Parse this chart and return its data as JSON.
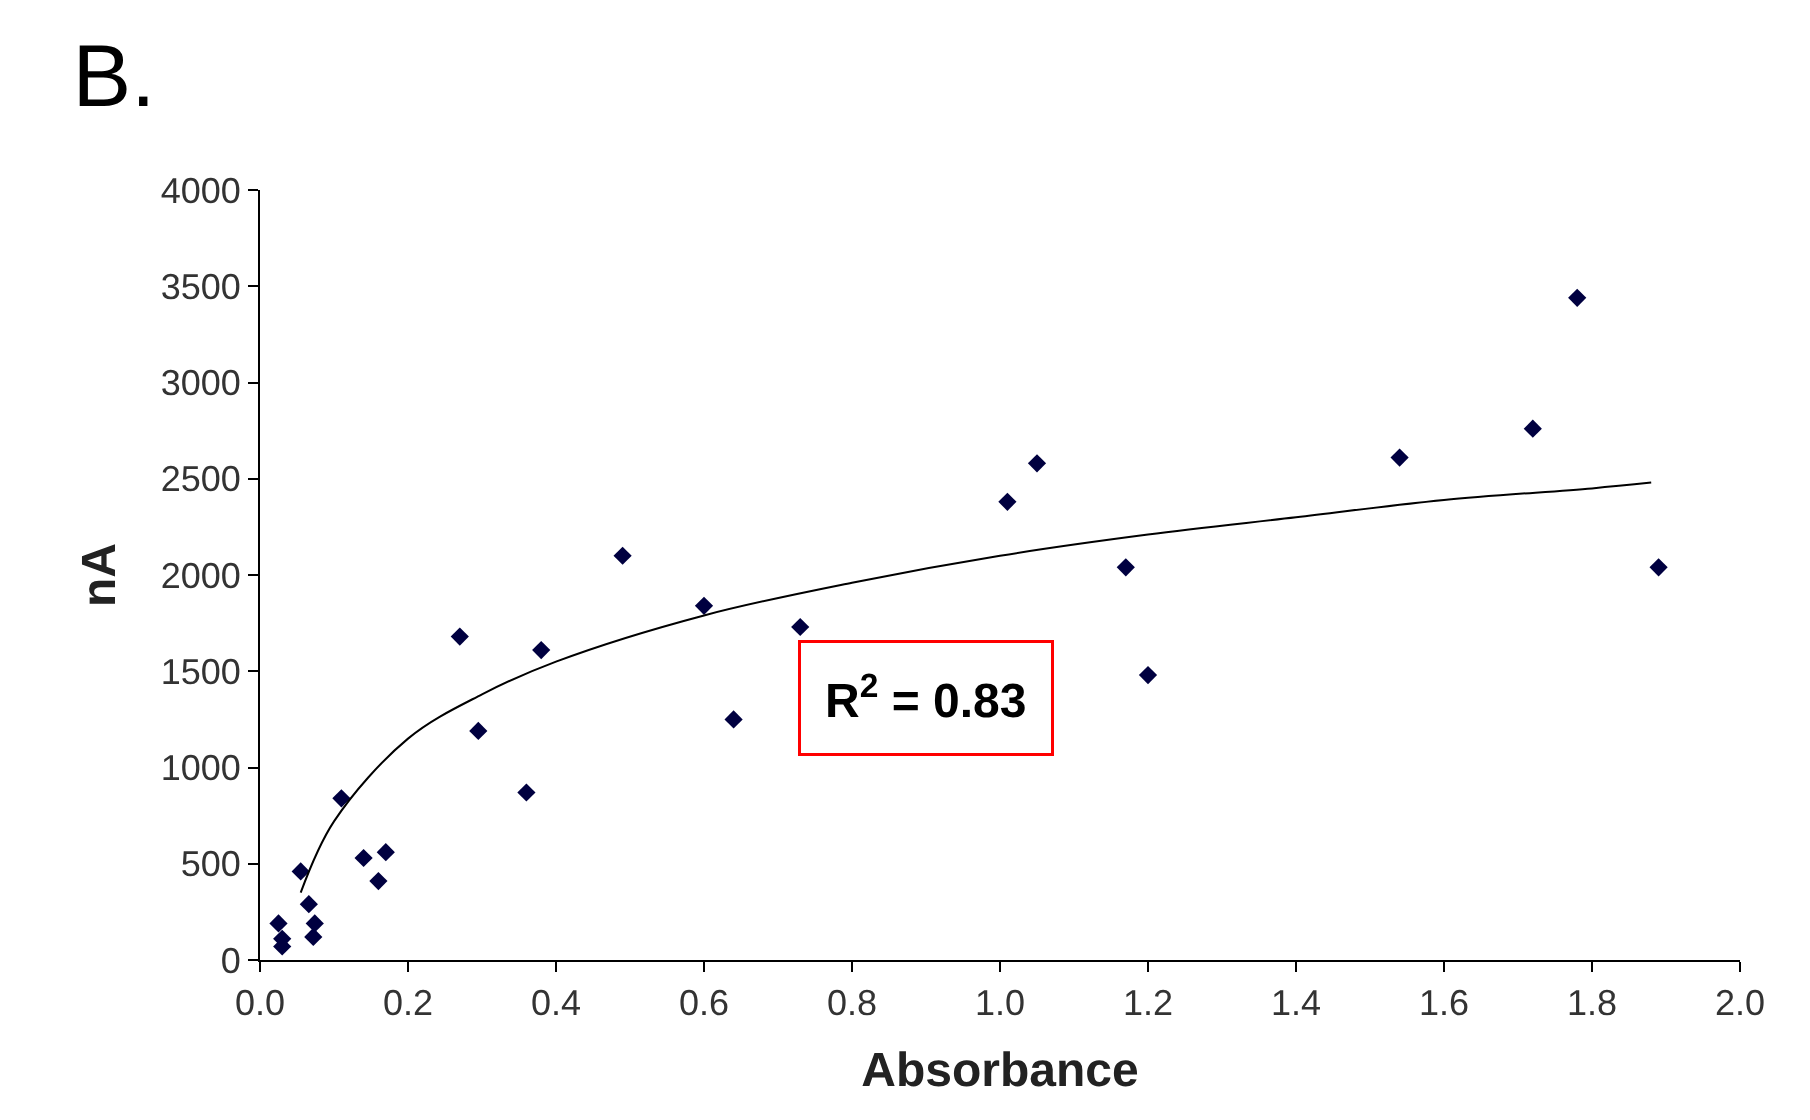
{
  "chart_data": {
    "type": "scatter",
    "title": "B.",
    "xlabel": "Absorbance",
    "ylabel": "nA",
    "xlim": [
      0,
      2.0
    ],
    "xticks": [
      {
        "value": 0,
        "label": "0.0"
      },
      0.2,
      0.4,
      0.6,
      0.8,
      {
        "value": 1,
        "label": "1.0"
      },
      1.2,
      1.4,
      1.6,
      1.8,
      {
        "value": 2,
        "label": "2.0"
      }
    ],
    "ylim": [
      0,
      4000
    ],
    "yticks": [
      0,
      500,
      1000,
      1500,
      2000,
      2500,
      3000,
      3500,
      4000
    ],
    "series": [
      {
        "marker": "diamond",
        "color": "#000040",
        "x": [
          0.025,
          0.03,
          0.03,
          0.055,
          0.066,
          0.074,
          0.072,
          0.11,
          0.14,
          0.16,
          0.17,
          0.27,
          0.295,
          0.36,
          0.38,
          0.49,
          0.6,
          0.64,
          0.73,
          1.01,
          1.05,
          1.17,
          1.2,
          1.54,
          1.72,
          1.78,
          1.89
        ],
        "values": [
          190,
          70,
          110,
          460,
          290,
          190,
          120,
          840,
          530,
          410,
          560,
          1680,
          1190,
          870,
          1610,
          2100,
          1840,
          1250,
          1730,
          2380,
          2580,
          2040,
          1480,
          2610,
          2760,
          3440,
          2040
        ]
      },
      {
        "type": "line",
        "color": "#000000",
        "x": [
          0.055,
          0.1,
          0.2,
          0.3,
          0.4,
          0.6,
          0.8,
          1.0,
          1.2,
          1.4,
          1.6,
          1.8,
          1.88
        ],
        "values": [
          350,
          720,
          1150,
          1380,
          1550,
          1790,
          1960,
          2100,
          2210,
          2300,
          2390,
          2450,
          2480
        ]
      }
    ],
    "annotations": [
      "R$^{2}$ = 0.83"
    ]
  }
}
